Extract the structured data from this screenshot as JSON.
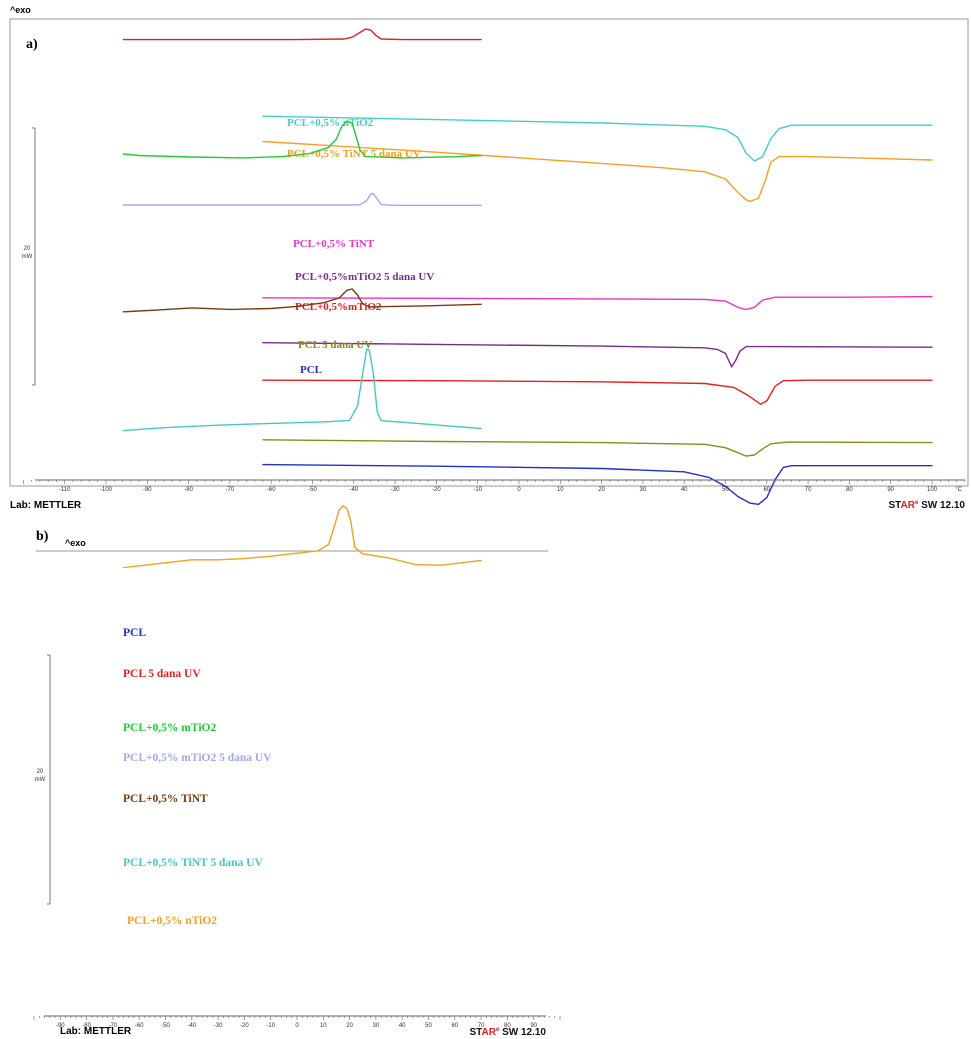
{
  "panel_a": {
    "panel_label": "a)",
    "exo": "^exo",
    "scale": {
      "value": "20",
      "unit": "mW"
    },
    "axis_unit": "°C",
    "ticks": [
      -110,
      -100,
      -90,
      -80,
      -70,
      -60,
      -50,
      -40,
      -30,
      -20,
      -10,
      0,
      10,
      20,
      30,
      40,
      50,
      60,
      70,
      80,
      90,
      100
    ],
    "lab": "Lab: METTLER",
    "software": {
      "brand_star": "ST",
      "brand_ar": "AR",
      "registered": "e",
      "version": " SW 12.10"
    }
  },
  "panel_b": {
    "panel_label": "b)",
    "exo": "^exo",
    "scale": {
      "value": "20",
      "unit": "mW"
    },
    "ticks": [
      -90,
      -80,
      -70,
      -60,
      -50,
      -40,
      -30,
      -20,
      -10,
      0,
      10,
      20,
      30,
      40,
      50,
      60,
      70,
      80,
      90
    ],
    "lab": "Lab: METTLER",
    "software": {
      "brand_star": "ST",
      "brand_ar": "AR",
      "registered": "e",
      "version": " SW 12.10"
    }
  },
  "chart_data": [
    {
      "type": "line",
      "title": "a)",
      "xlabel": "°C",
      "ylabel": "^exo",
      "xlim": [
        -118,
        104
      ],
      "grid": false,
      "series": [
        {
          "name": "PCL+0,5% nTiO2",
          "color": "#3fcfcf",
          "points": [
            [
              -62,
              -4.6
            ],
            [
              -20,
              -4.0
            ],
            [
              20,
              -3.4
            ],
            [
              45,
              -2.8
            ],
            [
              50,
              -2.2
            ],
            [
              53,
              -0.8
            ],
            [
              55,
              2.0
            ],
            [
              57,
              3.4
            ],
            [
              59,
              2.6
            ],
            [
              61,
              -0.6
            ],
            [
              63,
              -2.4
            ],
            [
              66,
              -3.0
            ],
            [
              80,
              -3.0
            ],
            [
              100,
              -3.0
            ]
          ]
        },
        {
          "name": "PCL+0,5% TiNT  5 dana UV",
          "color": "#f5a020",
          "points": [
            [
              -62,
              -3.3
            ],
            [
              -40,
              -2.3
            ],
            [
              -20,
              -1.4
            ],
            [
              0,
              -0.4
            ],
            [
              20,
              0.6
            ],
            [
              35,
              1.4
            ],
            [
              45,
              2.1
            ],
            [
              50,
              3.4
            ],
            [
              53,
              5.8
            ],
            [
              55,
              7.1
            ],
            [
              56,
              7.4
            ],
            [
              58,
              6.8
            ],
            [
              59.5,
              4.0
            ],
            [
              61,
              0.4
            ],
            [
              63,
              -0.6
            ],
            [
              70,
              -0.6
            ],
            [
              100,
              0.0
            ]
          ]
        },
        {
          "name": "PCL+0,5% TiNT",
          "color": "#f030c0",
          "points": [
            [
              -62,
              7.1
            ],
            [
              -20,
              7.2
            ],
            [
              20,
              7.3
            ],
            [
              45,
              7.4
            ],
            [
              50,
              7.7
            ],
            [
              53,
              8.8
            ],
            [
              55,
              9.2
            ],
            [
              57,
              8.8
            ],
            [
              59,
              7.5
            ],
            [
              62,
              7.0
            ],
            [
              80,
              7.0
            ],
            [
              100,
              6.9
            ]
          ]
        },
        {
          "name": "PCL+0,5%mTiO2 5 dana UV",
          "color": "#7a2a8a",
          "points": [
            [
              -62,
              8.7
            ],
            [
              -20,
              9.0
            ],
            [
              20,
              9.3
            ],
            [
              45,
              9.6
            ],
            [
              48,
              9.9
            ],
            [
              50,
              10.6
            ],
            [
              51.5,
              13.0
            ],
            [
              52.5,
              11.8
            ],
            [
              53.5,
              10.2
            ],
            [
              55,
              9.4
            ],
            [
              60,
              9.4
            ],
            [
              100,
              9.5
            ]
          ]
        },
        {
          "name": "PCL+0,5%mTiO2",
          "color": "#e52020",
          "points": [
            [
              -62,
              11.1
            ],
            [
              -20,
              11.2
            ],
            [
              20,
              11.4
            ],
            [
              45,
              11.7
            ],
            [
              52,
              12.4
            ],
            [
              55,
              13.6
            ],
            [
              57,
              14.6
            ],
            [
              58.5,
              15.4
            ],
            [
              60,
              14.8
            ],
            [
              62,
              12.2
            ],
            [
              64,
              11.2
            ],
            [
              70,
              11.1
            ],
            [
              100,
              11.1
            ]
          ]
        },
        {
          "name": "PCL 5 dana UV",
          "color": "#8b8b1a",
          "points": [
            [
              -62,
              13.9
            ],
            [
              -20,
              14.2
            ],
            [
              20,
              14.4
            ],
            [
              45,
              14.7
            ],
            [
              50,
              15.3
            ],
            [
              53,
              16.2
            ],
            [
              55,
              16.8
            ],
            [
              57,
              16.6
            ],
            [
              59,
              15.5
            ],
            [
              61,
              14.6
            ],
            [
              65,
              14.3
            ],
            [
              100,
              14.4
            ]
          ]
        },
        {
          "name": "PCL",
          "color": "#2030d0",
          "points": [
            [
              -62,
              15.1
            ],
            [
              -20,
              15.4
            ],
            [
              20,
              15.8
            ],
            [
              40,
              16.4
            ],
            [
              46,
              17.4
            ],
            [
              50,
              19.0
            ],
            [
              53,
              20.8
            ],
            [
              56,
              22.0
            ],
            [
              58,
              22.2
            ],
            [
              60,
              21.0
            ],
            [
              62,
              17.8
            ],
            [
              64,
              15.6
            ],
            [
              66,
              15.3
            ],
            [
              100,
              15.3
            ]
          ]
        }
      ]
    },
    {
      "type": "line",
      "title": "b)",
      "xlabel": "",
      "ylabel": "^exo",
      "xlim": [
        -95,
        94
      ],
      "grid": false,
      "series": [
        {
          "name": "PCL",
          "color": "#2030d0",
          "points": [
            [
              -66,
              -8.7
            ],
            [
              0,
              -8.7
            ],
            [
              14,
              -8.9
            ],
            [
              17,
              -9.4
            ],
            [
              19,
              -11.5
            ],
            [
              21,
              -14.8
            ],
            [
              23,
              -17.5
            ],
            [
              24.5,
              -18.3
            ],
            [
              26,
              -17.2
            ],
            [
              28,
              -13.5
            ],
            [
              30,
              -10.0
            ],
            [
              32,
              -9.0
            ],
            [
              36,
              -8.6
            ],
            [
              70,
              -8.6
            ]
          ]
        },
        {
          "name": "PCL  5 dana UV",
          "color": "#e52020",
          "points": [
            [
              -66,
              -1.8
            ],
            [
              0,
              -1.8
            ],
            [
              18,
              -2.0
            ],
            [
              21,
              -2.6
            ],
            [
              24,
              -4.2
            ],
            [
              26,
              -5.3
            ],
            [
              28,
              -5.0
            ],
            [
              30,
              -3.2
            ],
            [
              32,
              -2.0
            ],
            [
              40,
              -1.8
            ],
            [
              70,
              -1.8
            ]
          ]
        },
        {
          "name": "PCL+0,5% mTiO2",
          "color": "#22cc33",
          "points": [
            [
              -66,
              10.0
            ],
            [
              -60,
              10.5
            ],
            [
              -40,
              11.0
            ],
            [
              -20,
              11.3
            ],
            [
              -5,
              10.8
            ],
            [
              5,
              9.8
            ],
            [
              12,
              7.8
            ],
            [
              15,
              5.0
            ],
            [
              17,
              0.8
            ],
            [
              19,
              -1.0
            ],
            [
              21,
              -0.2
            ],
            [
              22,
              2.8
            ],
            [
              24,
              8.8
            ],
            [
              26,
              10.8
            ],
            [
              40,
              11.3
            ],
            [
              60,
              10.9
            ],
            [
              70,
              10.5
            ]
          ]
        },
        {
          "name": "PCL+0,5% mTiO2  5 dana UV",
          "color": "#a0a8ee",
          "points": [
            [
              -66,
              14.0
            ],
            [
              0,
              14.0
            ],
            [
              20,
              14.0
            ],
            [
              24,
              13.9
            ],
            [
              26.5,
              12.5
            ],
            [
              28,
              10.4
            ],
            [
              29,
              10.2
            ],
            [
              30.5,
              12.0
            ],
            [
              32,
              13.8
            ],
            [
              36,
              14.1
            ],
            [
              70,
              14.1
            ]
          ]
        },
        {
          "name": "PCL+0,5% TiNT",
          "color": "#7a3a10",
          "points": [
            [
              -66,
              22.6
            ],
            [
              -55,
              22.1
            ],
            [
              -40,
              21.3
            ],
            [
              -25,
              21.8
            ],
            [
              -10,
              21.5
            ],
            [
              0,
              20.8
            ],
            [
              10,
              19.6
            ],
            [
              16,
              18.0
            ],
            [
              19,
              15.4
            ],
            [
              21,
              15.0
            ],
            [
              23,
              17.0
            ],
            [
              25,
              20.0
            ],
            [
              28,
              21.0
            ],
            [
              32,
              20.9
            ],
            [
              50,
              20.6
            ],
            [
              70,
              20.1
            ]
          ]
        },
        {
          "name": "PCL+0,5% TiNT  5 dana UV",
          "color": "#45c8c0",
          "points": [
            [
              -66,
              31.2
            ],
            [
              -50,
              30.2
            ],
            [
              -30,
              29.4
            ],
            [
              -10,
              28.8
            ],
            [
              10,
              28.3
            ],
            [
              20,
              27.8
            ],
            [
              23,
              23.0
            ],
            [
              25,
              12.0
            ],
            [
              26.5,
              4.0
            ],
            [
              27.5,
              4.5
            ],
            [
              29,
              12.0
            ],
            [
              30.5,
              25.0
            ],
            [
              32,
              27.9
            ],
            [
              40,
              28.4
            ],
            [
              60,
              29.8
            ],
            [
              70,
              30.5
            ]
          ]
        },
        {
          "name": "PCL+0,5% nTiO2",
          "color": "#f5a020",
          "points": [
            [
              -66,
              41.2
            ],
            [
              -60,
              40.6
            ],
            [
              -50,
              39.6
            ],
            [
              -40,
              38.6
            ],
            [
              -30,
              38.6
            ],
            [
              -20,
              38.2
            ],
            [
              -10,
              37.4
            ],
            [
              0,
              36.4
            ],
            [
              8,
              35.6
            ],
            [
              12,
              33.5
            ],
            [
              14,
              28.0
            ],
            [
              16,
              22.0
            ],
            [
              17.5,
              20.6
            ],
            [
              19,
              21.5
            ],
            [
              20.5,
              26.0
            ],
            [
              22,
              34.5
            ],
            [
              25,
              36.6
            ],
            [
              35,
              38.0
            ],
            [
              45,
              40.2
            ],
            [
              55,
              40.4
            ],
            [
              70,
              38.8
            ]
          ]
        }
      ]
    }
  ]
}
